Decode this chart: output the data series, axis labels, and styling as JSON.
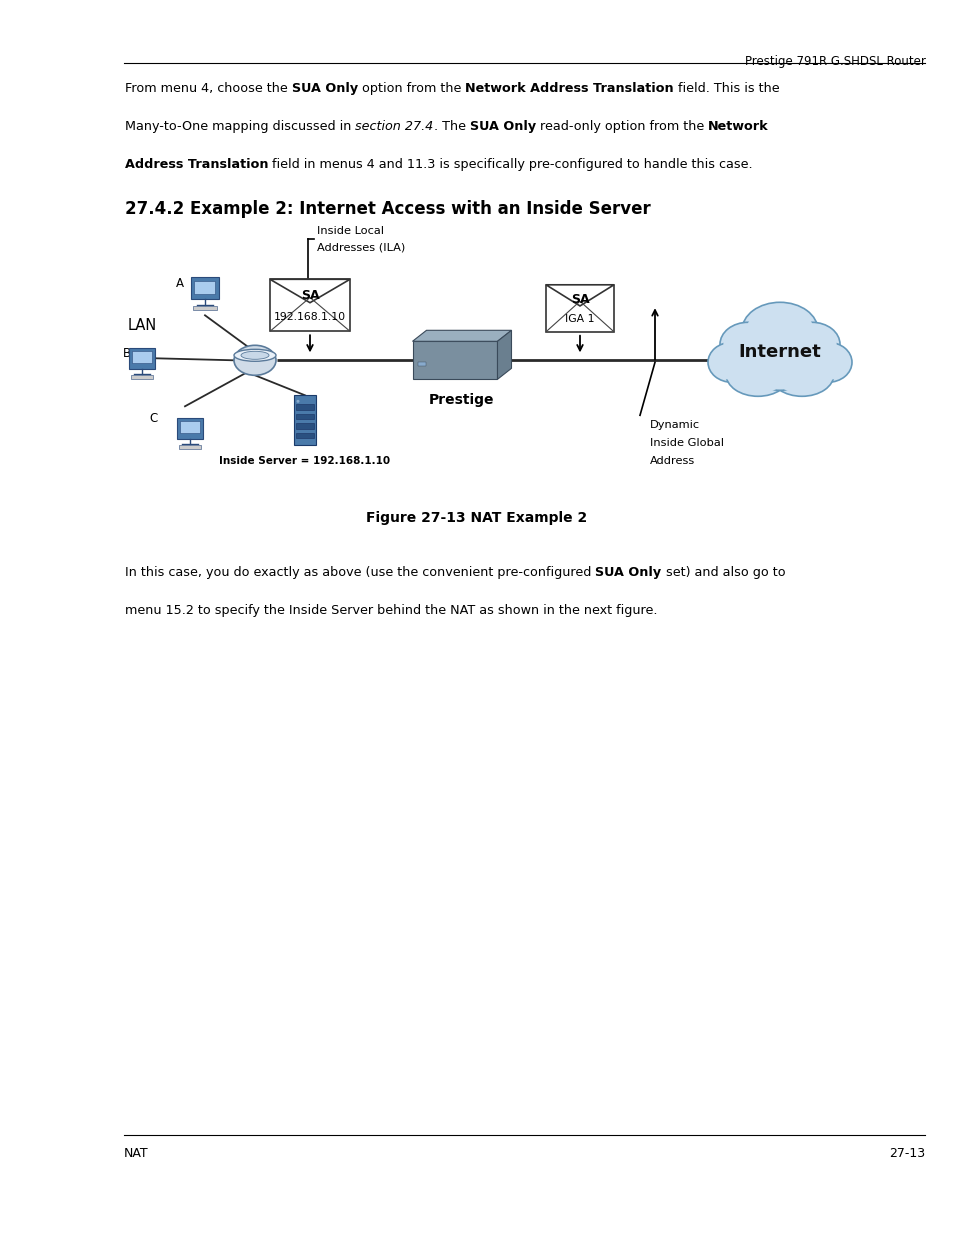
{
  "page_header_right": "Prestige 791R G.SHDSL Router",
  "section_title": "27.4.2 Example 2: Internet Access with an Inside Server",
  "figure_caption": "Figure 27-13 NAT Example 2",
  "footer_left": "NAT",
  "footer_right": "27-13",
  "diagram": {
    "lan_label": "LAN",
    "label_a": "A",
    "label_b": "B",
    "label_c": "C",
    "sa_left_label": "SA",
    "sa_left_ip": "192.168.1.10",
    "sa_right_label": "SA",
    "sa_right_sub": "IGA 1",
    "inside_local_line1": "Inside Local",
    "inside_local_line2": "Addresses (ILA)",
    "prestige_label": "Prestige",
    "internet_label": "Internet",
    "dynamic_line1": "Dynamic",
    "dynamic_line2": "Inside Global",
    "dynamic_line3": "Address",
    "inside_server_label": "Inside Server = 192.168.1.10"
  }
}
